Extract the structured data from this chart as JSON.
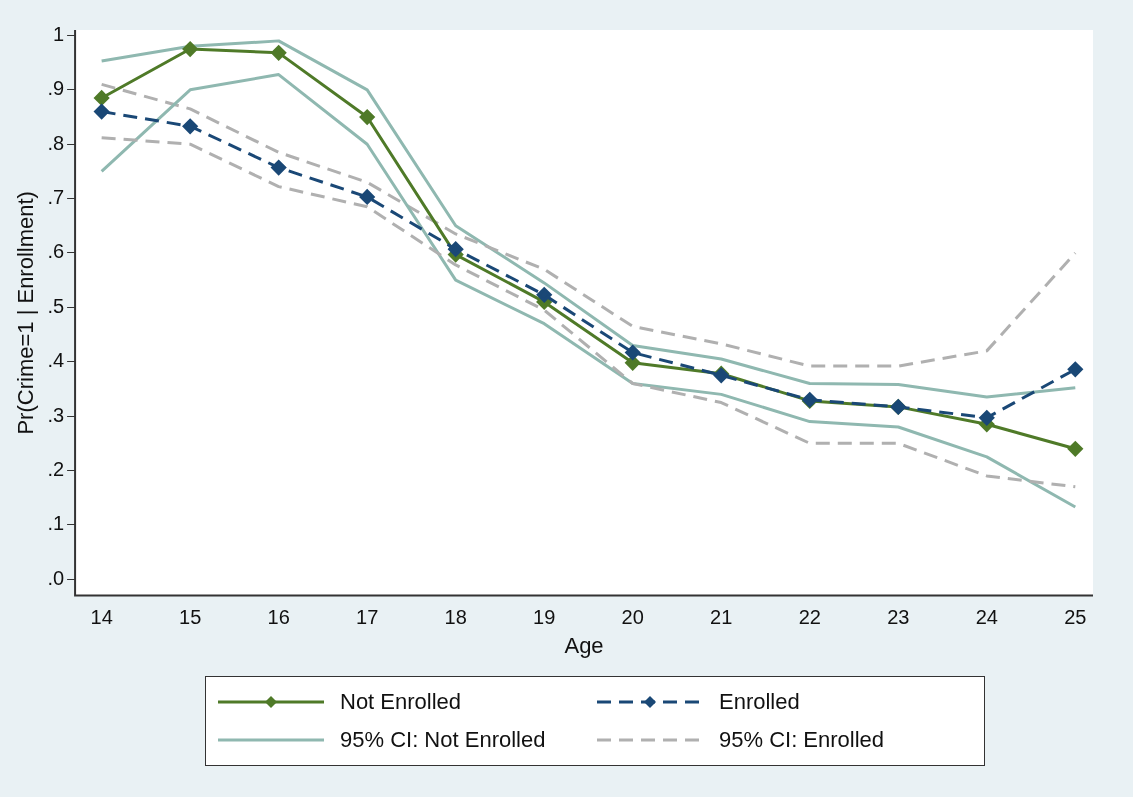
{
  "chart_data": {
    "type": "line",
    "xlabel": "Age",
    "ylabel": "Pr(Crime=1 | Enrollment)",
    "x": [
      14,
      15,
      16,
      17,
      18,
      19,
      20,
      21,
      22,
      23,
      24,
      25
    ],
    "xlim": [
      13.7,
      25.2
    ],
    "xticks": [
      14,
      15,
      16,
      17,
      18,
      19,
      20,
      21,
      22,
      23,
      24,
      25
    ],
    "ylim": [
      -0.03,
      1.01
    ],
    "yticks": [
      {
        "value": 0,
        "label": ".0"
      },
      {
        "value": 0.1,
        "label": ".1"
      },
      {
        "value": 0.2,
        "label": ".2"
      },
      {
        "value": 0.3,
        "label": ".3"
      },
      {
        "value": 0.4,
        "label": ".4"
      },
      {
        "value": 0.5,
        "label": ".5"
      },
      {
        "value": 0.6,
        "label": ".6"
      },
      {
        "value": 0.7,
        "label": ".7"
      },
      {
        "value": 0.8,
        "label": ".8"
      },
      {
        "value": 0.9,
        "label": ".9"
      },
      {
        "value": 1,
        "label": "1"
      }
    ],
    "grid": false,
    "legend": "bottom",
    "series": [
      {
        "name": "Not Enrolled",
        "color": "#4f7a28",
        "marker": "diamond",
        "line_style": "solid",
        "values": [
          0.885,
          0.975,
          0.968,
          0.85,
          0.597,
          0.51,
          0.398,
          0.378,
          0.328,
          0.317,
          0.285,
          0.24
        ]
      },
      {
        "name": "Enrolled",
        "color": "#1a4876",
        "marker": "diamond",
        "line_style": "dashed",
        "values": [
          0.86,
          0.833,
          0.757,
          0.703,
          0.607,
          0.523,
          0.417,
          0.375,
          0.33,
          0.317,
          0.297,
          0.386
        ]
      },
      {
        "name": "95% CI: Not Enrolled",
        "color": "#8fb8b0",
        "marker": "none",
        "line_style": "solid",
        "values": [
          0.953,
          0.98,
          0.99,
          0.9,
          0.65,
          0.545,
          0.43,
          0.405,
          0.36,
          0.358,
          0.335,
          0.352
        ]
      },
      {
        "name": "95% CI: Enrolled",
        "color": "#b0b0b0",
        "marker": "none",
        "line_style": "dashed",
        "values": [
          0.91,
          0.865,
          0.785,
          0.73,
          0.635,
          0.57,
          0.465,
          0.433,
          0.392,
          0.392,
          0.42,
          0.6
        ]
      },
      {
        "color": "#8fb8b0",
        "marker": "none",
        "line_style": "solid",
        "values": [
          0.75,
          0.9,
          0.928,
          0.8,
          0.55,
          0.47,
          0.36,
          0.34,
          0.29,
          0.28,
          0.225,
          0.133
        ]
      },
      {
        "color": "#b0b0b0",
        "marker": "none",
        "line_style": "dashed",
        "values": [
          0.812,
          0.8,
          0.722,
          0.685,
          0.578,
          0.495,
          0.36,
          0.325,
          0.25,
          0.25,
          0.19,
          0.17
        ]
      }
    ]
  }
}
